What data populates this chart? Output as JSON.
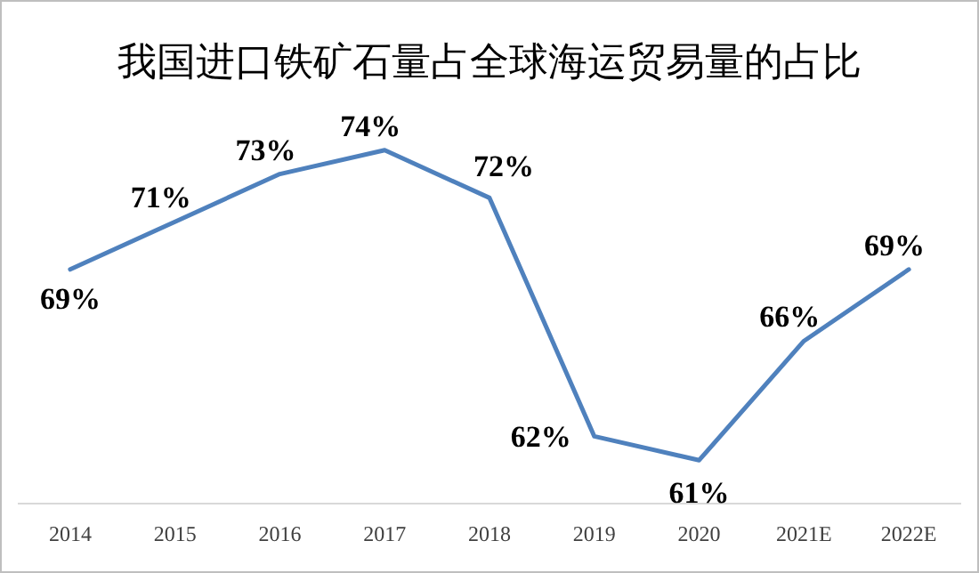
{
  "chart_data": {
    "type": "line",
    "title": "我国进口铁矿石量占全球海运贸易量的占比",
    "categories": [
      "2014",
      "2015",
      "2016",
      "2017",
      "2018",
      "2019",
      "2020",
      "2021E",
      "2022E"
    ],
    "series": [
      {
        "color": "#4f81bd",
        "values": [
          69,
          71,
          73,
          74,
          72,
          62,
          61,
          66,
          69
        ],
        "value_labels": [
          "69%",
          "71%",
          "73%",
          "74%",
          "72%",
          "62%",
          "61%",
          "66%",
          "69%"
        ]
      }
    ],
    "marker": "none",
    "line_style": "solid"
  }
}
